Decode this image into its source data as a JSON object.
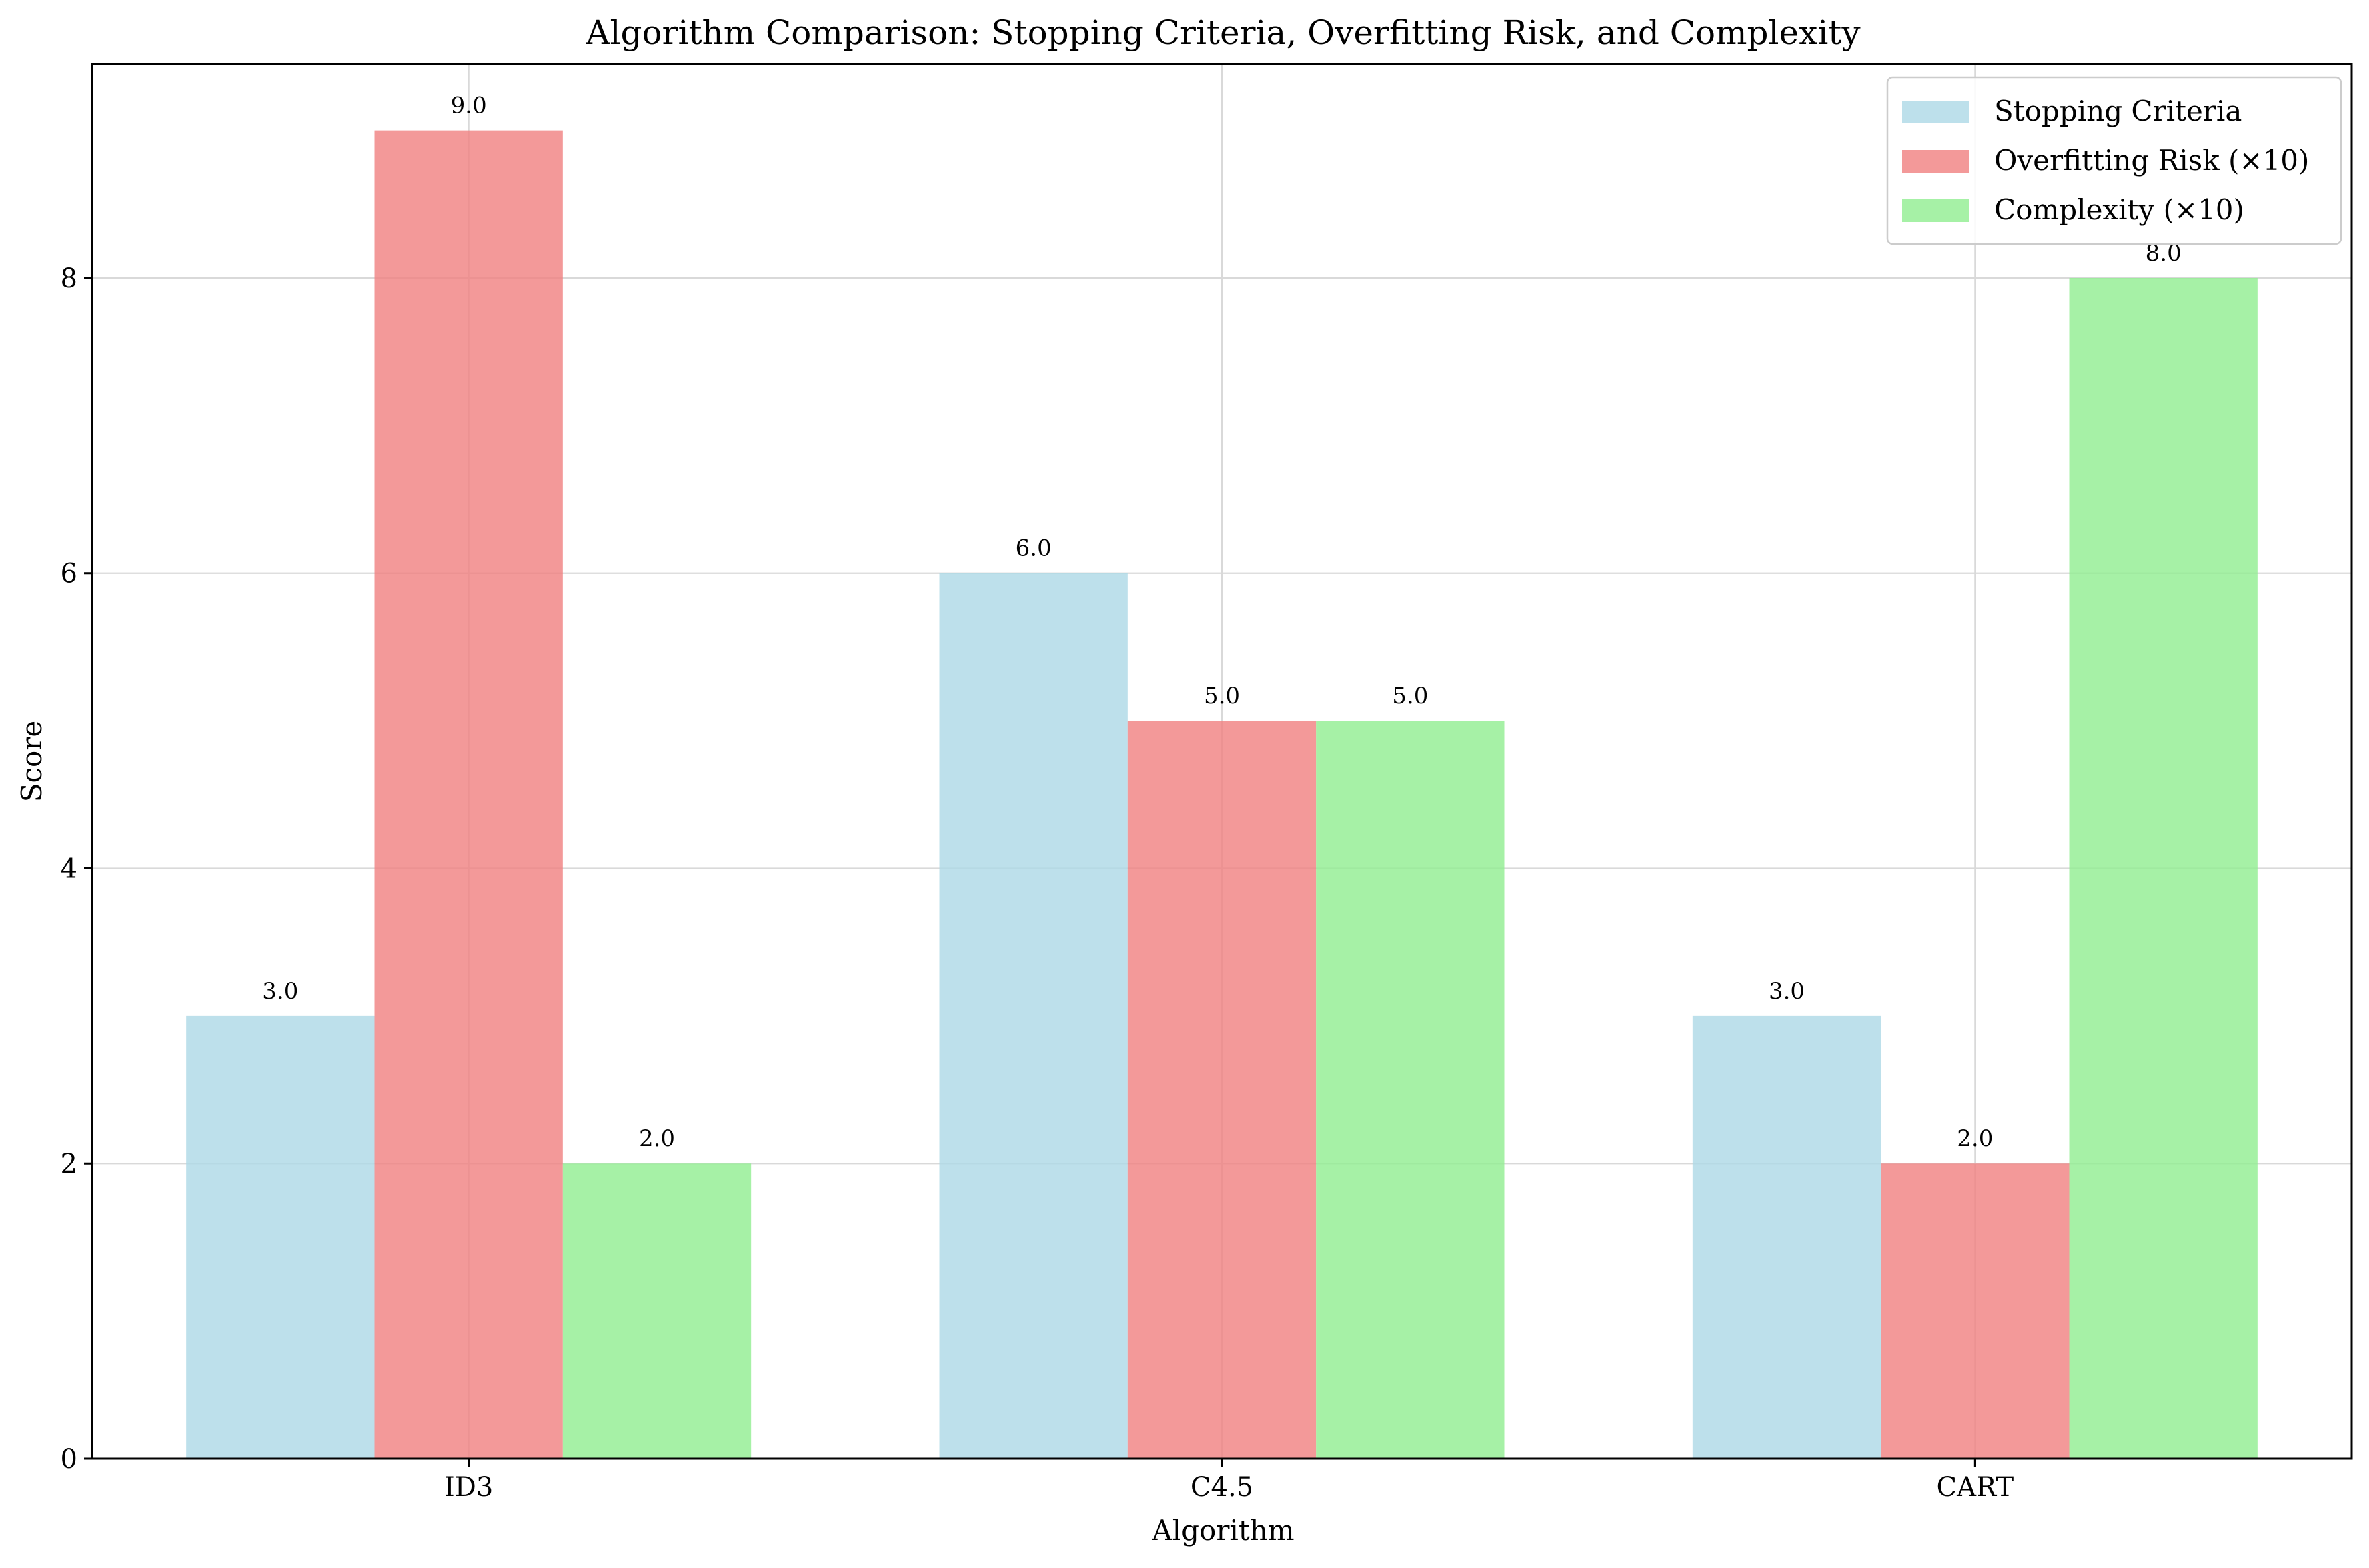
{
  "chart_data": {
    "type": "bar",
    "title": "Algorithm Comparison: Stopping Criteria, Overfitting Risk, and Complexity",
    "xlabel": "Algorithm",
    "ylabel": "Score",
    "categories": [
      "ID3",
      "C4.5",
      "CART"
    ],
    "series": [
      {
        "name": "Stopping Criteria",
        "values": [
          3.0,
          6.0,
          3.0
        ],
        "color": "#add8e6"
      },
      {
        "name": "Overfitting Risk (×10)",
        "values": [
          9.0,
          5.0,
          2.0
        ],
        "color": "#f08080"
      },
      {
        "name": "Complexity (×10)",
        "values": [
          2.0,
          5.0,
          8.0
        ],
        "color": "#90ee90"
      }
    ],
    "data_labels": [
      [
        "3.0",
        "6.0",
        "3.0"
      ],
      [
        "9.0",
        "5.0",
        "2.0"
      ],
      [
        "2.0",
        "5.0",
        "8.0"
      ]
    ],
    "yticks": [
      0,
      2,
      4,
      6,
      8
    ],
    "ylim": [
      0,
      9.45
    ],
    "grid": true,
    "legend_position": "top-right"
  }
}
